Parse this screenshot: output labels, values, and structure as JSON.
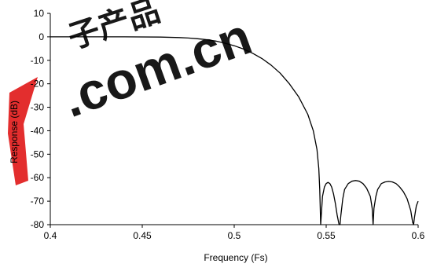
{
  "chart_data": {
    "type": "line",
    "title": "",
    "xlabel": "Frequency (Fs)",
    "ylabel": "Response (dB)",
    "xlim": [
      0.4,
      0.6
    ],
    "ylim": [
      -80,
      10
    ],
    "xticks": [
      "0.4",
      "0.45",
      "0.5",
      "0.55",
      "0.6"
    ],
    "yticks": [
      "10",
      "0",
      "-10",
      "-20",
      "-30",
      "-40",
      "-50",
      "-60",
      "-70",
      "-80"
    ],
    "grid": false,
    "legend": "none",
    "line_color": "#000000",
    "series": [
      {
        "x": [
          0.4,
          0.42,
          0.44,
          0.46,
          0.47,
          0.475,
          0.48,
          0.485,
          0.49,
          0.495,
          0.5,
          0.505,
          0.51,
          0.515,
          0.52,
          0.525,
          0.53,
          0.535,
          0.54,
          0.543,
          0.545,
          0.546,
          0.5465,
          0.547,
          0.548,
          0.549,
          0.55,
          0.551,
          0.552,
          0.553,
          0.554,
          0.555,
          0.556,
          0.557,
          0.5575,
          0.558,
          0.559,
          0.56,
          0.562,
          0.564,
          0.566,
          0.568,
          0.57,
          0.572,
          0.574,
          0.575,
          0.5755,
          0.576,
          0.577,
          0.578,
          0.58,
          0.582,
          0.584,
          0.586,
          0.588,
          0.59,
          0.592,
          0.594,
          0.596,
          0.597,
          0.5975,
          0.598,
          0.599,
          0.6
        ],
        "values": [
          0,
          0,
          0,
          -0.1,
          -0.3,
          -0.5,
          -0.8,
          -1.2,
          -1.8,
          -2.7,
          -3.8,
          -5.2,
          -7.0,
          -9.2,
          -12.0,
          -15.5,
          -20.0,
          -25.5,
          -33.0,
          -40.0,
          -48.0,
          -56.0,
          -65.0,
          -80.0,
          -68.0,
          -64.0,
          -62.5,
          -62.0,
          -62.5,
          -64.0,
          -67.0,
          -71.0,
          -76.0,
          -80.0,
          -80.0,
          -76.0,
          -69.0,
          -65.0,
          -62.5,
          -61.5,
          -61.2,
          -61.5,
          -62.5,
          -64.5,
          -68.0,
          -73.0,
          -80.0,
          -73.0,
          -68.0,
          -65.0,
          -62.5,
          -61.8,
          -61.6,
          -61.8,
          -62.5,
          -64.0,
          -66.0,
          -69.0,
          -74.0,
          -79.0,
          -80.0,
          -77.0,
          -72.0,
          -70.0
        ]
      }
    ]
  },
  "watermark": {
    "text": ".com.cn",
    "glyphs": "子产品",
    "color": "#e01818"
  }
}
